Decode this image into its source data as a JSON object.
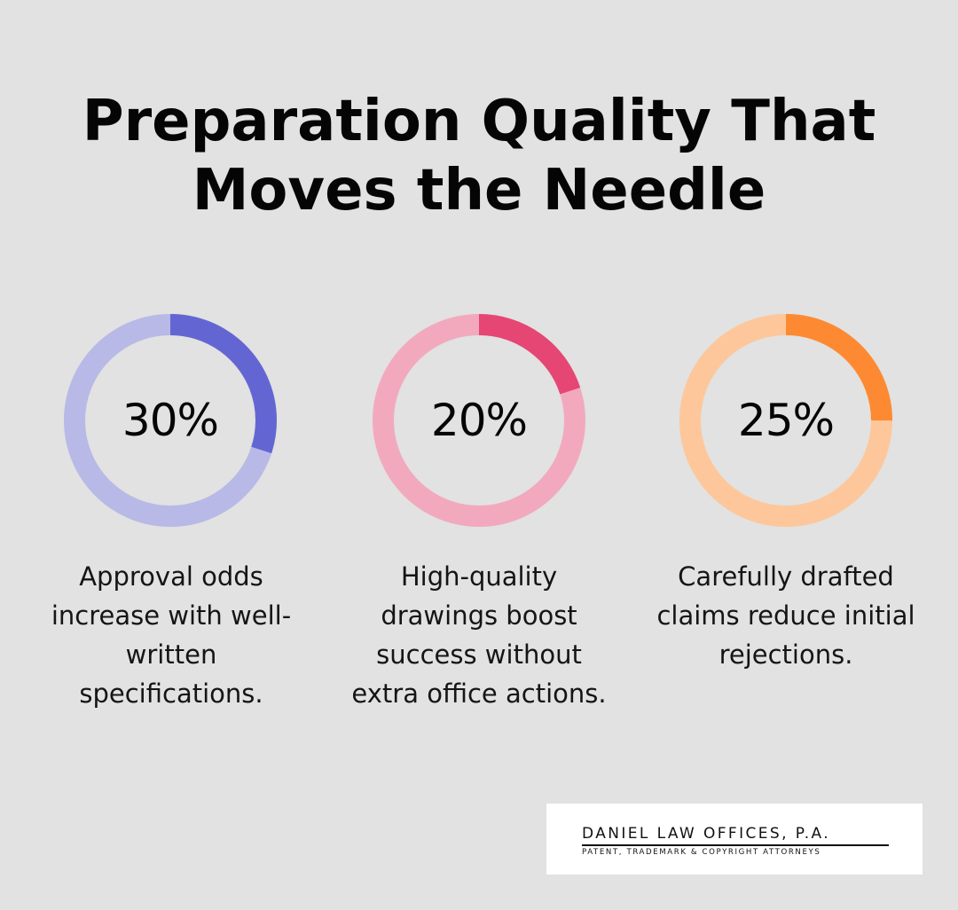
{
  "title_lines": [
    "Preparation Quality That",
    "Moves the Needle"
  ],
  "chart_data": [
    {
      "type": "donut",
      "value": 30,
      "label": "30%",
      "description": "Approval odds increase with well-written specifications.",
      "description_lines": [
        "Approval odds",
        "increase with well-",
        "written",
        "specifications."
      ],
      "colors": {
        "fill": "#6366d2",
        "track": "#b8b9e6"
      }
    },
    {
      "type": "donut",
      "value": 20,
      "label": "20%",
      "description": "High-quality drawings boost success without extra office actions.",
      "description_lines": [
        "High-quality",
        "drawings boost",
        "success without",
        "extra office actions."
      ],
      "colors": {
        "fill": "#e54674",
        "track": "#f2a9be"
      }
    },
    {
      "type": "donut",
      "value": 25,
      "label": "25%",
      "description": "Carefully drafted claims reduce initial rejections.",
      "description_lines": [
        "Carefully drafted",
        "claims reduce initial",
        "rejections."
      ],
      "colors": {
        "fill": "#fd8a33",
        "track": "#fdc79b"
      }
    }
  ],
  "logo": {
    "name": "DANIEL LAW OFFICES, P.A.",
    "tagline": "PATENT, TRADEMARK & COPYRIGHT ATTORNEYS"
  },
  "colors": {
    "background": "#e1e2e1",
    "text": "#050505"
  }
}
